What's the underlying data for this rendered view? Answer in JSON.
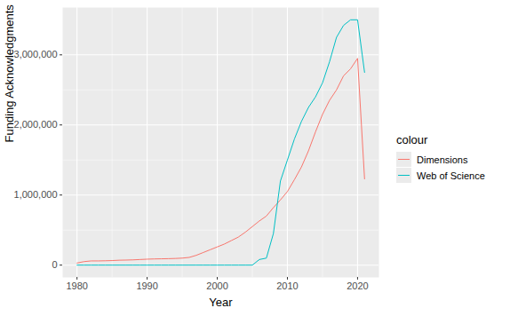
{
  "chart_data": {
    "type": "line",
    "x_label": "Year",
    "y_label": "Funding Acknowledgments",
    "legend_title": "colour",
    "legend": "right",
    "grid": true,
    "x": [
      1980,
      1981,
      1982,
      1983,
      1984,
      1985,
      1986,
      1987,
      1988,
      1989,
      1990,
      1991,
      1992,
      1993,
      1994,
      1995,
      1996,
      1997,
      1998,
      1999,
      2000,
      2001,
      2002,
      2003,
      2004,
      2005,
      2006,
      2007,
      2008,
      2009,
      2010,
      2011,
      2012,
      2013,
      2014,
      2015,
      2016,
      2017,
      2018,
      2019,
      2020,
      2021
    ],
    "series": [
      {
        "name": "Dimensions",
        "color": "#F8766D",
        "values": [
          30000,
          50000,
          60000,
          60000,
          62000,
          65000,
          70000,
          72000,
          75000,
          80000,
          85000,
          88000,
          90000,
          92000,
          95000,
          100000,
          110000,
          140000,
          180000,
          220000,
          260000,
          300000,
          350000,
          400000,
          470000,
          550000,
          630000,
          700000,
          820000,
          930000,
          1050000,
          1220000,
          1400000,
          1630000,
          1900000,
          2150000,
          2350000,
          2500000,
          2700000,
          2800000,
          2950000,
          1230000
        ]
      },
      {
        "name": "Web of Science",
        "color": "#00BFC4",
        "values": [
          0,
          0,
          0,
          0,
          0,
          0,
          0,
          0,
          0,
          0,
          0,
          0,
          0,
          0,
          0,
          0,
          0,
          0,
          0,
          0,
          0,
          0,
          0,
          0,
          0,
          0,
          80000,
          100000,
          450000,
          1200000,
          1500000,
          1800000,
          2050000,
          2250000,
          2400000,
          2600000,
          2900000,
          3250000,
          3420000,
          3500000,
          3500000,
          2750000
        ]
      }
    ],
    "xlim": [
      1977.95,
      2023.05
    ],
    "xticks": [
      1980,
      1990,
      2000,
      2010,
      2020
    ],
    "ylim": [
      -175000,
      3675000
    ],
    "yticks": [
      0,
      {
        "value": 1000000,
        "label": "1,000,000"
      },
      {
        "value": 2000000,
        "label": "2,000,000"
      },
      {
        "value": 3000000,
        "label": "3,000,000"
      }
    ]
  }
}
